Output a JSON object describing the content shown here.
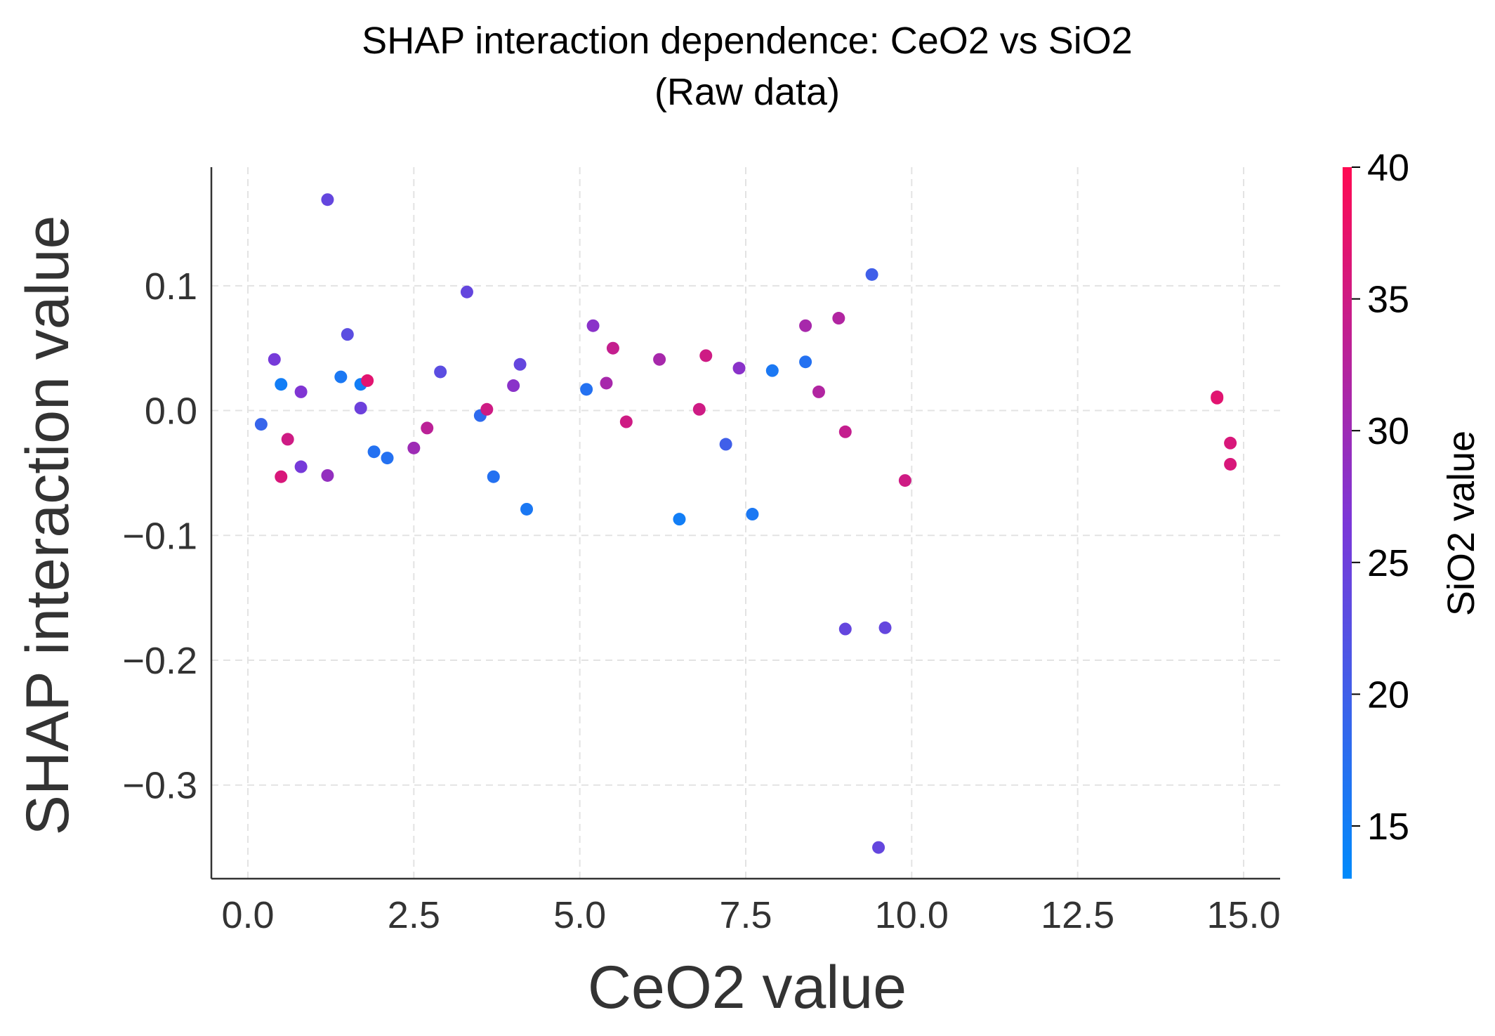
{
  "chart_data": {
    "type": "scatter",
    "title_line1": "SHAP interaction dependence: CeO2 vs SiO2",
    "title_line2": "(Raw data)",
    "xlabel": "CeO2 value",
    "ylabel": "SHAP interaction value",
    "xlim": [
      -0.55,
      15.55
    ],
    "ylim": [
      -0.375,
      0.195
    ],
    "x_ticks": [
      0.0,
      2.5,
      5.0,
      7.5,
      10.0,
      12.5,
      15.0
    ],
    "x_tick_labels": [
      "0.0",
      "2.5",
      "5.0",
      "7.5",
      "10.0",
      "12.5",
      "15.0"
    ],
    "y_ticks": [
      0.1,
      0.0,
      -0.1,
      -0.2,
      -0.3
    ],
    "y_tick_labels": [
      "0.1",
      "0.0",
      "−0.1",
      "−0.2",
      "−0.3"
    ],
    "grid": true,
    "colorbar": {
      "label": "SiO2 value",
      "range": [
        13,
        40
      ],
      "ticks": [
        15,
        20,
        25,
        30,
        35,
        40
      ],
      "tick_labels": [
        "15",
        "20",
        "25",
        "30",
        "35",
        "40"
      ],
      "color_low": "#008afb",
      "color_mid": "#7b37d8",
      "color_high": "#ff0a52"
    },
    "points": [
      {
        "x": 0.2,
        "y": -0.011,
        "c": 19
      },
      {
        "x": 0.4,
        "y": 0.041,
        "c": 26
      },
      {
        "x": 0.5,
        "y": 0.021,
        "c": 15
      },
      {
        "x": 0.5,
        "y": -0.053,
        "c": 36
      },
      {
        "x": 0.6,
        "y": -0.023,
        "c": 35
      },
      {
        "x": 0.8,
        "y": 0.015,
        "c": 27
      },
      {
        "x": 0.8,
        "y": -0.045,
        "c": 26
      },
      {
        "x": 1.2,
        "y": 0.169,
        "c": 24
      },
      {
        "x": 1.2,
        "y": -0.052,
        "c": 29
      },
      {
        "x": 1.4,
        "y": 0.027,
        "c": 16
      },
      {
        "x": 1.5,
        "y": 0.061,
        "c": 23
      },
      {
        "x": 1.7,
        "y": 0.021,
        "c": 15
      },
      {
        "x": 1.7,
        "y": 0.002,
        "c": 25
      },
      {
        "x": 1.8,
        "y": 0.024,
        "c": 37
      },
      {
        "x": 1.9,
        "y": -0.033,
        "c": 17
      },
      {
        "x": 2.1,
        "y": -0.038,
        "c": 17
      },
      {
        "x": 2.5,
        "y": -0.03,
        "c": 30
      },
      {
        "x": 2.7,
        "y": -0.014,
        "c": 33
      },
      {
        "x": 2.9,
        "y": 0.031,
        "c": 23
      },
      {
        "x": 3.3,
        "y": 0.095,
        "c": 24
      },
      {
        "x": 3.5,
        "y": -0.004,
        "c": 18
      },
      {
        "x": 3.6,
        "y": 0.001,
        "c": 35
      },
      {
        "x": 3.7,
        "y": -0.053,
        "c": 17
      },
      {
        "x": 4.0,
        "y": 0.02,
        "c": 28
      },
      {
        "x": 4.1,
        "y": 0.037,
        "c": 24
      },
      {
        "x": 4.2,
        "y": -0.079,
        "c": 16
      },
      {
        "x": 5.1,
        "y": 0.017,
        "c": 17
      },
      {
        "x": 5.2,
        "y": 0.068,
        "c": 28
      },
      {
        "x": 5.4,
        "y": 0.022,
        "c": 31
      },
      {
        "x": 5.5,
        "y": 0.05,
        "c": 34
      },
      {
        "x": 5.7,
        "y": -0.009,
        "c": 35
      },
      {
        "x": 6.2,
        "y": 0.041,
        "c": 31
      },
      {
        "x": 6.5,
        "y": -0.087,
        "c": 15
      },
      {
        "x": 6.8,
        "y": 0.001,
        "c": 35
      },
      {
        "x": 6.9,
        "y": 0.044,
        "c": 35
      },
      {
        "x": 7.2,
        "y": -0.027,
        "c": 20
      },
      {
        "x": 7.4,
        "y": 0.034,
        "c": 28
      },
      {
        "x": 7.6,
        "y": -0.083,
        "c": 16
      },
      {
        "x": 7.9,
        "y": 0.032,
        "c": 16
      },
      {
        "x": 8.4,
        "y": 0.039,
        "c": 17
      },
      {
        "x": 8.4,
        "y": 0.068,
        "c": 31
      },
      {
        "x": 8.6,
        "y": 0.015,
        "c": 32
      },
      {
        "x": 8.9,
        "y": 0.074,
        "c": 32
      },
      {
        "x": 9.0,
        "y": -0.017,
        "c": 34
      },
      {
        "x": 9.0,
        "y": -0.175,
        "c": 24
      },
      {
        "x": 9.4,
        "y": 0.109,
        "c": 20
      },
      {
        "x": 9.5,
        "y": -0.35,
        "c": 24
      },
      {
        "x": 9.6,
        "y": -0.174,
        "c": 24
      },
      {
        "x": 9.9,
        "y": -0.056,
        "c": 35
      },
      {
        "x": 14.6,
        "y": 0.011,
        "c": 36
      },
      {
        "x": 14.6,
        "y": 0.01,
        "c": 37
      },
      {
        "x": 14.8,
        "y": -0.026,
        "c": 36
      },
      {
        "x": 14.8,
        "y": -0.043,
        "c": 36
      }
    ]
  }
}
